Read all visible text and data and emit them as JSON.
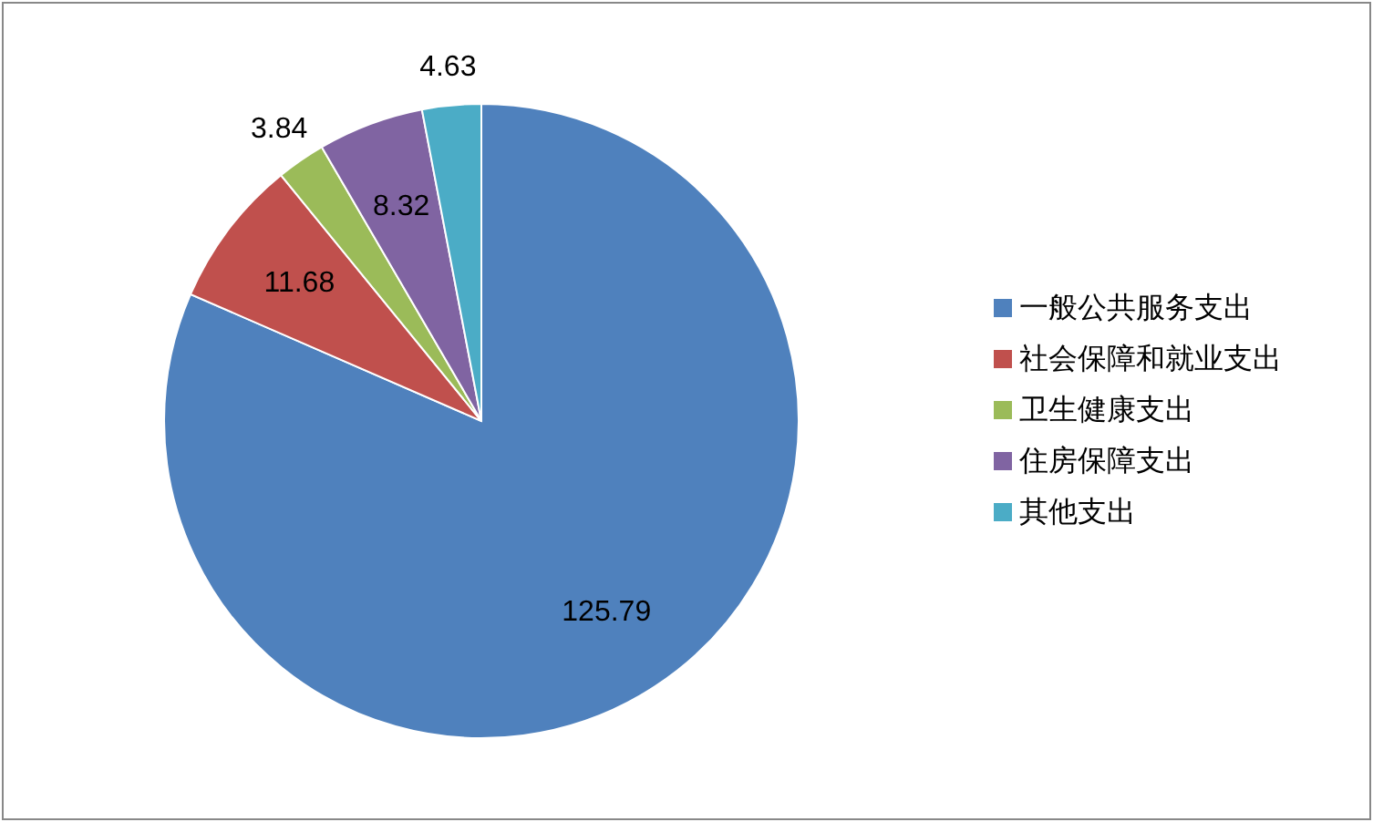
{
  "chart_data": {
    "type": "pie",
    "categories": [
      "一般公共服务支出",
      "社会保障和就业支出",
      "卫生健康支出",
      "住房保障支出",
      "其他支出"
    ],
    "values": [
      125.79,
      11.68,
      3.84,
      8.32,
      4.63
    ],
    "colors": [
      "#4f81bd",
      "#c0504d",
      "#9bbb59",
      "#8064a2",
      "#4bacc6"
    ],
    "data_labels": true,
    "legend": "right"
  }
}
